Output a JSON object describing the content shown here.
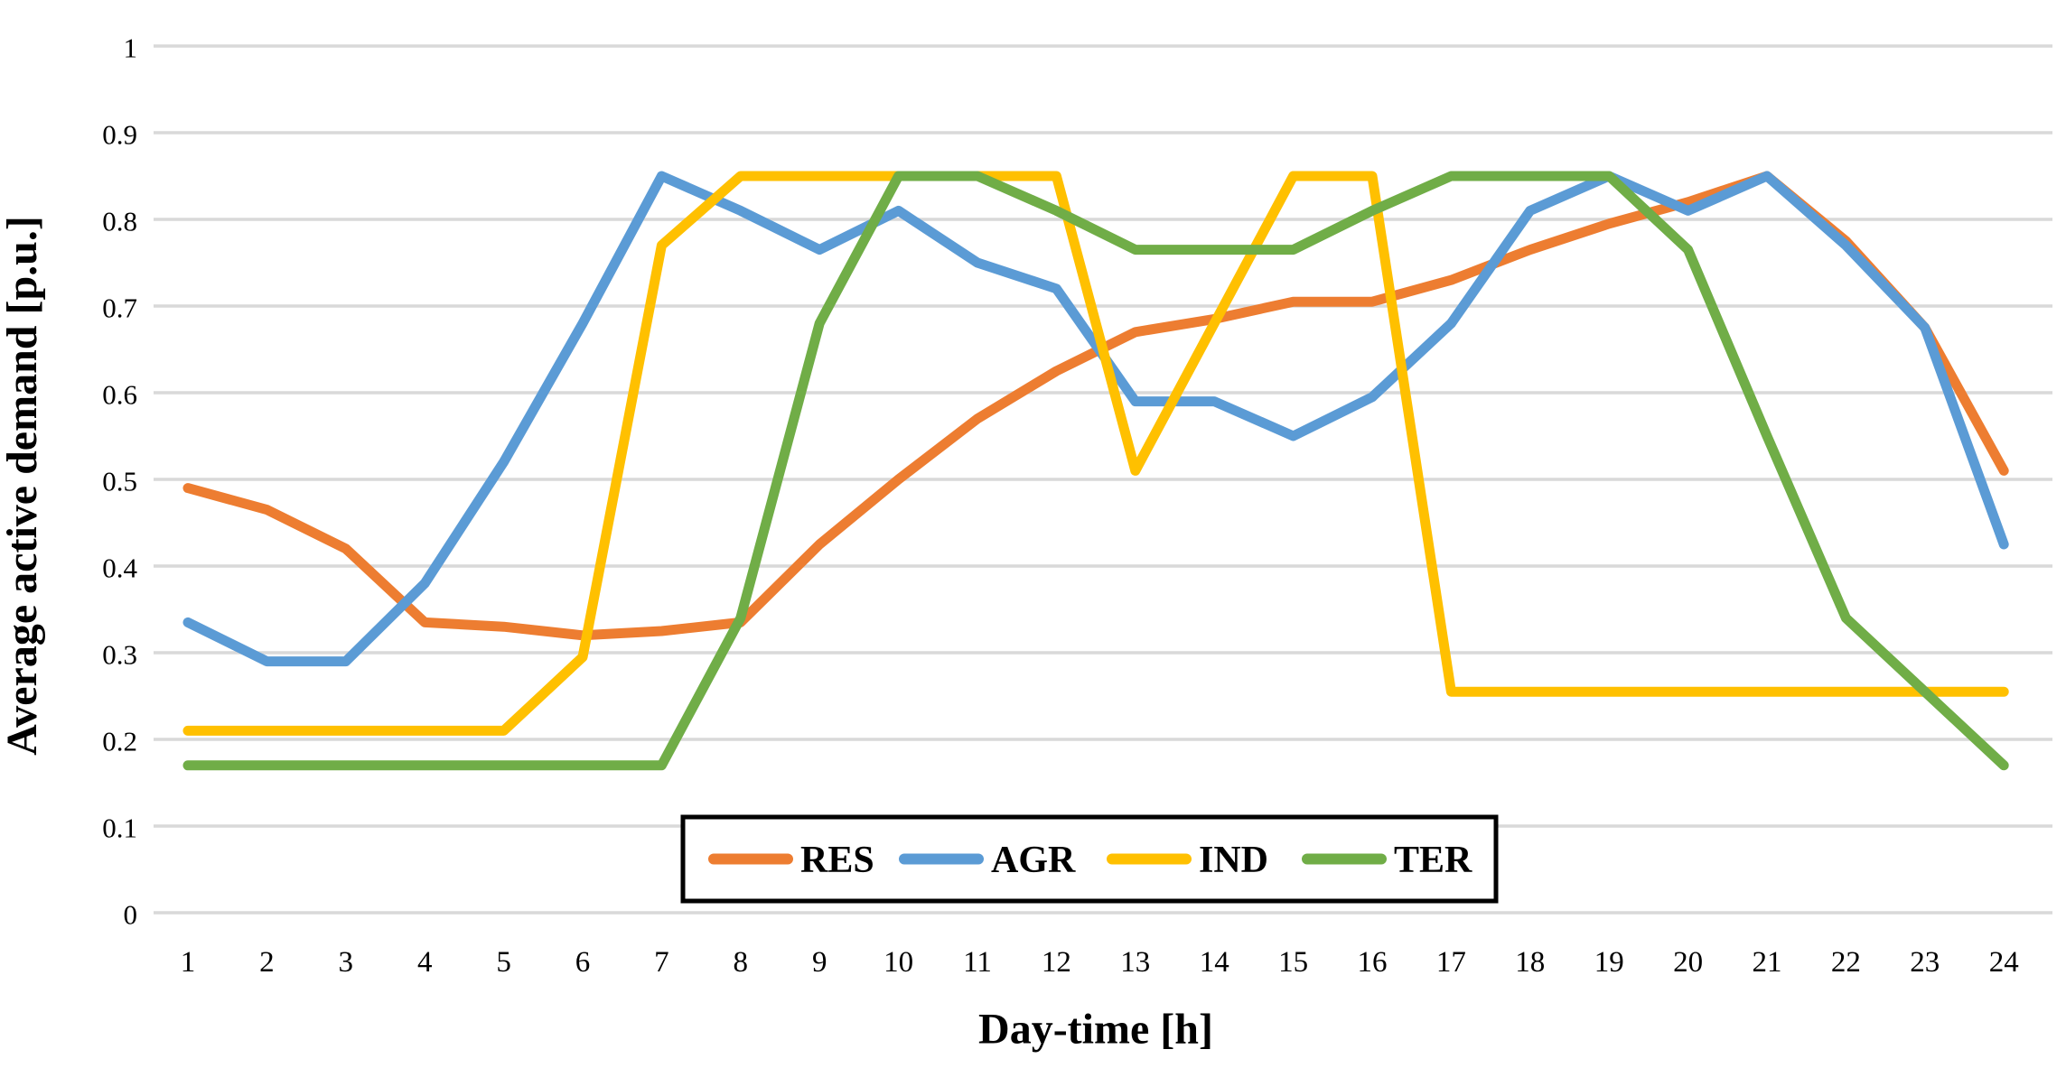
{
  "figure": {
    "y_axis_title": "Average active demand [p.u.]",
    "x_axis_title": "Day-time [h]",
    "background_color": "#ffffff",
    "grid_color": "#d9d9d9",
    "text_color": "#000000",
    "legend_border_color": "#000000"
  },
  "legend": {
    "position": "inside-bottom-center",
    "items": [
      {
        "label": "RES",
        "color": "#ED7D31"
      },
      {
        "label": "AGR",
        "color": "#5B9BD5"
      },
      {
        "label": "IND",
        "color": "#FFC000"
      },
      {
        "label": "TER",
        "color": "#70AD47"
      }
    ]
  },
  "chart_data": {
    "type": "line",
    "title": "",
    "xlabel": "Day-time [h]",
    "ylabel": "Average active demand [p.u.]",
    "x": [
      1,
      2,
      3,
      4,
      5,
      6,
      7,
      8,
      9,
      10,
      11,
      12,
      13,
      14,
      15,
      16,
      17,
      18,
      19,
      20,
      21,
      22,
      23,
      24
    ],
    "x_tick_labels": [
      "1",
      "2",
      "3",
      "4",
      "5",
      "6",
      "7",
      "8",
      "9",
      "10",
      "11",
      "12",
      "13",
      "14",
      "15",
      "16",
      "17",
      "18",
      "19",
      "20",
      "21",
      "22",
      "23",
      "24"
    ],
    "y_tick_values": [
      0,
      0.1,
      0.2,
      0.3,
      0.4,
      0.5,
      0.6,
      0.7,
      0.8,
      0.9,
      1
    ],
    "y_tick_labels": [
      "0",
      "0.1",
      "0.2",
      "0.3",
      "0.4",
      "0.5",
      "0.6",
      "0.7",
      "0.8",
      "0.9",
      "1"
    ],
    "ylim": [
      0,
      1
    ],
    "grid": "horizontal-only",
    "legend_position": "inside-bottom-center",
    "series": [
      {
        "name": "RES",
        "color": "#ED7D31",
        "values": [
          0.49,
          0.465,
          0.42,
          0.335,
          0.33,
          0.32,
          0.325,
          0.335,
          0.425,
          0.5,
          0.57,
          0.625,
          0.67,
          0.685,
          0.705,
          0.705,
          0.73,
          0.765,
          0.795,
          0.82,
          0.85,
          0.775,
          0.675,
          0.51
        ]
      },
      {
        "name": "AGR",
        "color": "#5B9BD5",
        "values": [
          0.335,
          0.29,
          0.29,
          0.38,
          0.52,
          0.68,
          0.85,
          0.81,
          0.765,
          0.81,
          0.75,
          0.72,
          0.59,
          0.59,
          0.55,
          0.595,
          0.68,
          0.81,
          0.85,
          0.81,
          0.85,
          0.77,
          0.675,
          0.425
        ]
      },
      {
        "name": "IND",
        "color": "#FFC000",
        "values": [
          0.21,
          0.21,
          0.21,
          0.21,
          0.21,
          0.295,
          0.77,
          0.85,
          0.85,
          0.85,
          0.85,
          0.85,
          0.51,
          0.68,
          0.85,
          0.85,
          0.255,
          0.255,
          0.255,
          0.255,
          0.255,
          0.255,
          0.255,
          0.255
        ]
      },
      {
        "name": "TER",
        "color": "#70AD47",
        "values": [
          0.17,
          0.17,
          0.17,
          0.17,
          0.17,
          0.17,
          0.17,
          0.34,
          0.68,
          0.85,
          0.85,
          0.81,
          0.765,
          0.765,
          0.765,
          0.81,
          0.85,
          0.85,
          0.85,
          0.765,
          0.55,
          0.34,
          0.255,
          0.17
        ]
      }
    ]
  }
}
